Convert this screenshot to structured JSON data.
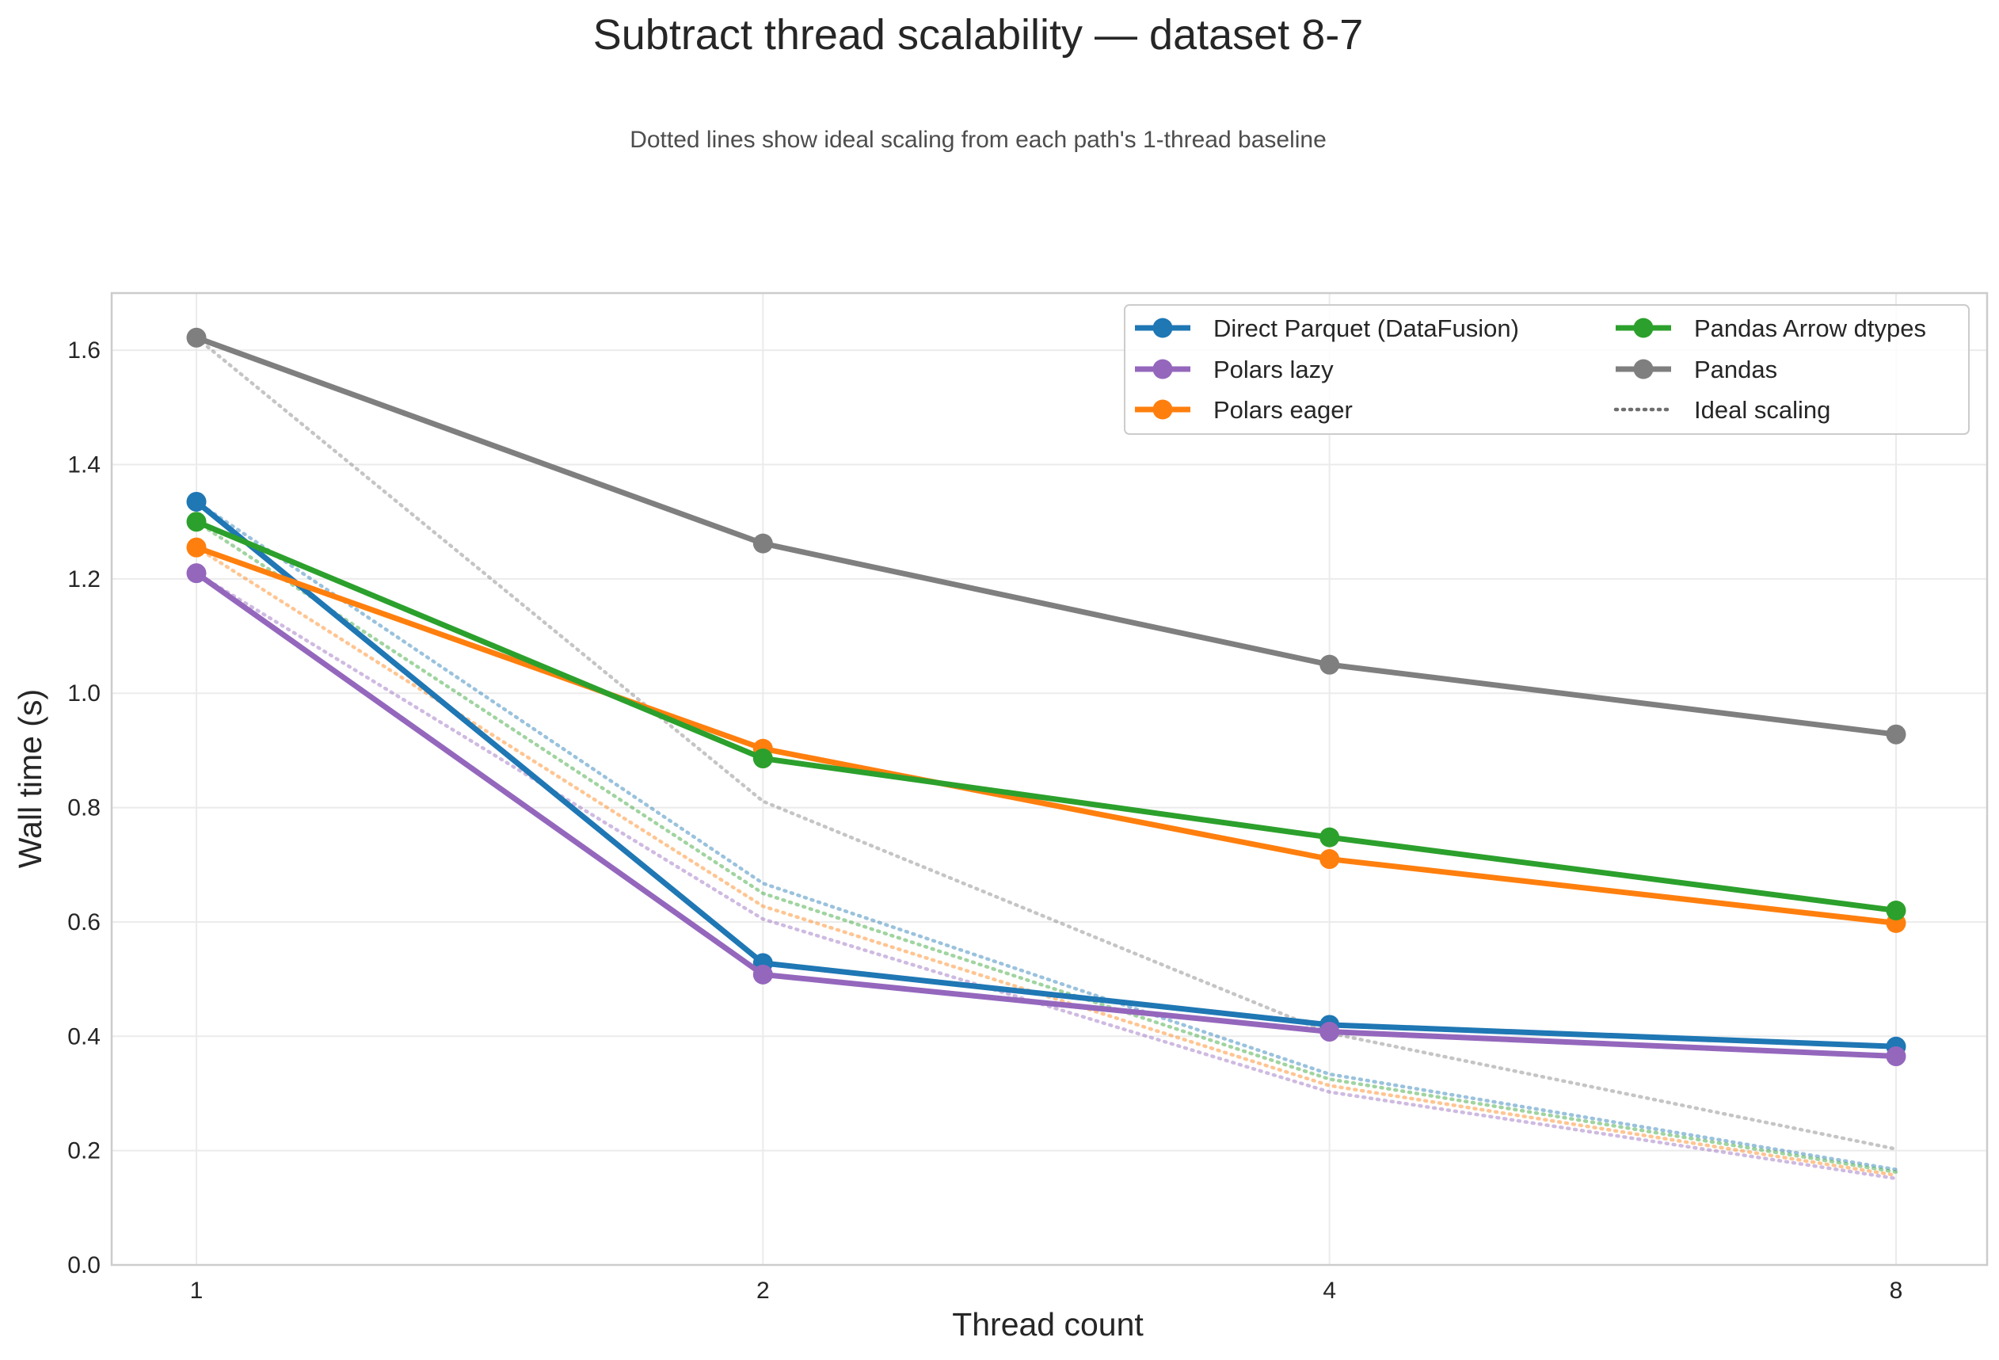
{
  "chart_data": {
    "type": "line",
    "title": "Subtract thread scalability — dataset 8-7",
    "subtitle": "Dotted lines show ideal scaling from each path's 1-thread baseline",
    "xlabel": "Thread count",
    "ylabel": "Wall time (s)",
    "x": [
      1,
      2,
      4,
      8
    ],
    "x_scale": "log2",
    "x_ticks": [
      "1",
      "2",
      "4",
      "8"
    ],
    "ylim": [
      0,
      1.7
    ],
    "y_ticks": [
      "0.0",
      "0.2",
      "0.4",
      "0.6",
      "0.8",
      "1.0",
      "1.2",
      "1.4",
      "1.6"
    ],
    "grid": true,
    "legend_position": "top-right",
    "ideal_label": "Ideal scaling",
    "series": [
      {
        "name": "Direct Parquet (DataFusion)",
        "color": "#1f77b4",
        "values": [
          1.335,
          0.528,
          0.42,
          0.382
        ]
      },
      {
        "name": "Polars lazy",
        "color": "#9467bd",
        "values": [
          1.21,
          0.508,
          0.408,
          0.365
        ]
      },
      {
        "name": "Polars eager",
        "color": "#ff7f0e",
        "values": [
          1.255,
          0.903,
          0.71,
          0.598
        ]
      },
      {
        "name": "Pandas Arrow dtypes",
        "color": "#2ca02c",
        "values": [
          1.3,
          0.886,
          0.748,
          0.62
        ]
      },
      {
        "name": "Pandas",
        "color": "#7f7f7f",
        "values": [
          1.622,
          1.262,
          1.05,
          0.928
        ]
      }
    ]
  }
}
